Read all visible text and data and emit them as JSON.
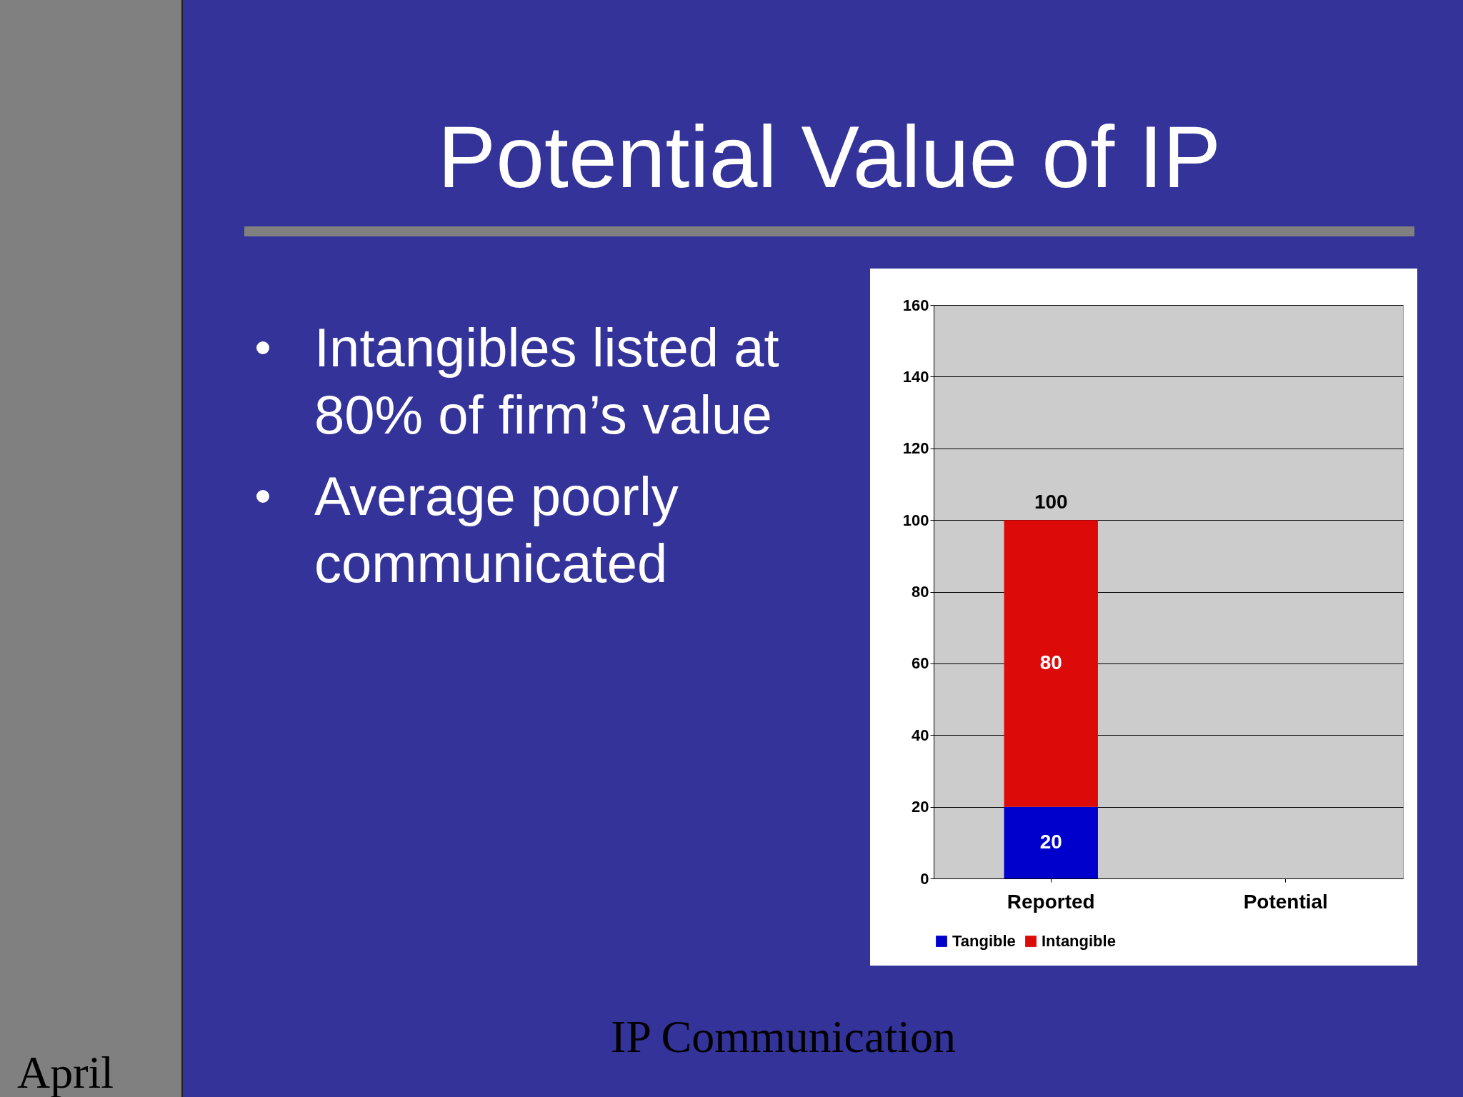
{
  "chart_data": {
    "type": "bar",
    "title": "Potential Value of IP",
    "categories": [
      "Reported",
      "Potential"
    ],
    "series": [
      {
        "name": "Tangible",
        "color": "#0000cc",
        "values": [
          20,
          null
        ]
      },
      {
        "name": "Intangible",
        "color": "#dd0a0a",
        "values": [
          80,
          null
        ]
      }
    ],
    "stacked": true,
    "ylim": [
      0,
      160
    ],
    "yticks": [
      0,
      20,
      40,
      60,
      80,
      100,
      120,
      140,
      160
    ],
    "grid": "y",
    "legend": "bottom",
    "data_labels": true,
    "totals": [
      "100",
      null
    ],
    "annotations": [
      "Intangibles listed at 80% of firm’s value",
      "Average poorly communicated",
      "IP Communication",
      "April"
    ]
  }
}
